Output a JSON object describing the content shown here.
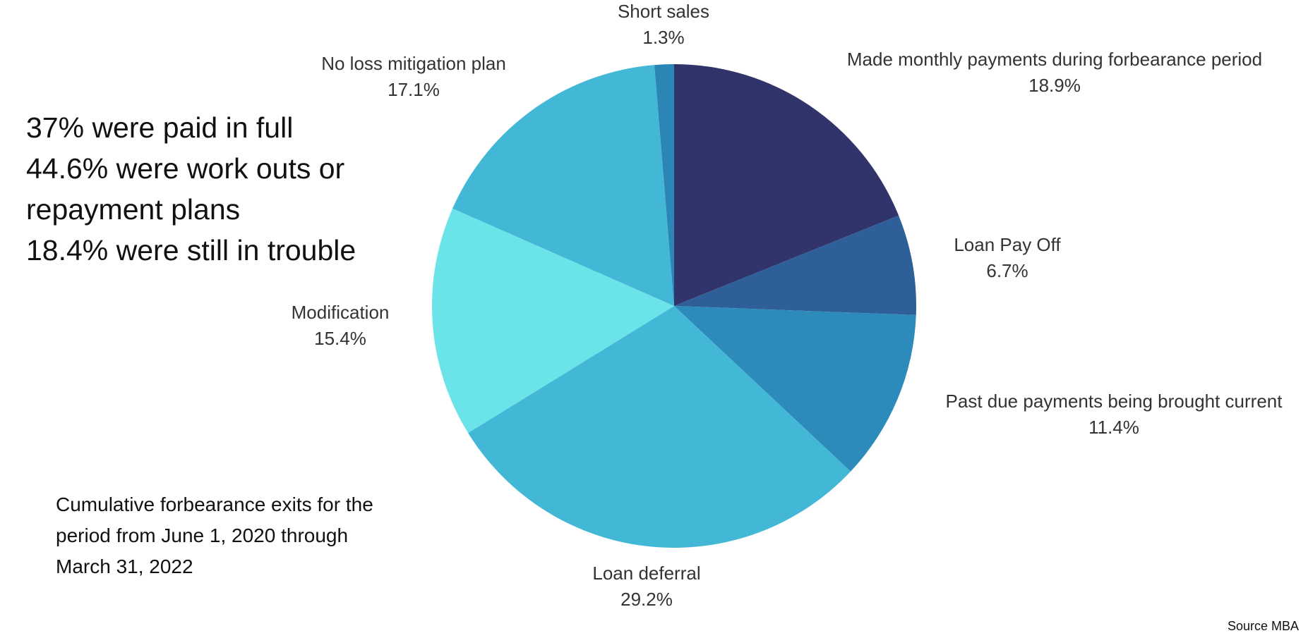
{
  "chart_data": {
    "type": "pie",
    "categories": [
      "Made monthly payments during forbearance period",
      "Loan Pay Off",
      "Past due payments being brought current",
      "Loan deferral",
      "Modification",
      "No loss mitigation plan",
      "Short sales"
    ],
    "values": [
      18.9,
      6.7,
      11.4,
      29.2,
      15.4,
      17.1,
      1.3
    ],
    "value_labels": [
      "18.9%",
      "6.7%",
      "11.4%",
      "29.2%",
      "15.4%",
      "17.1%",
      "1.3%"
    ],
    "colors": [
      "#31346b",
      "#2e5f98",
      "#2d8bbb",
      "#42b8d6",
      "#6ae4e8",
      "#42b8d6",
      "#2b86b6"
    ],
    "annotations": [
      "37% were paid in full",
      "44.6% were work outs or repayment plans",
      "18.4% were still in trouble"
    ],
    "subtitle": "Cumulative forbearance exits for the period from June 1, 2020 through March 31, 2022",
    "source": "Source MBA"
  }
}
